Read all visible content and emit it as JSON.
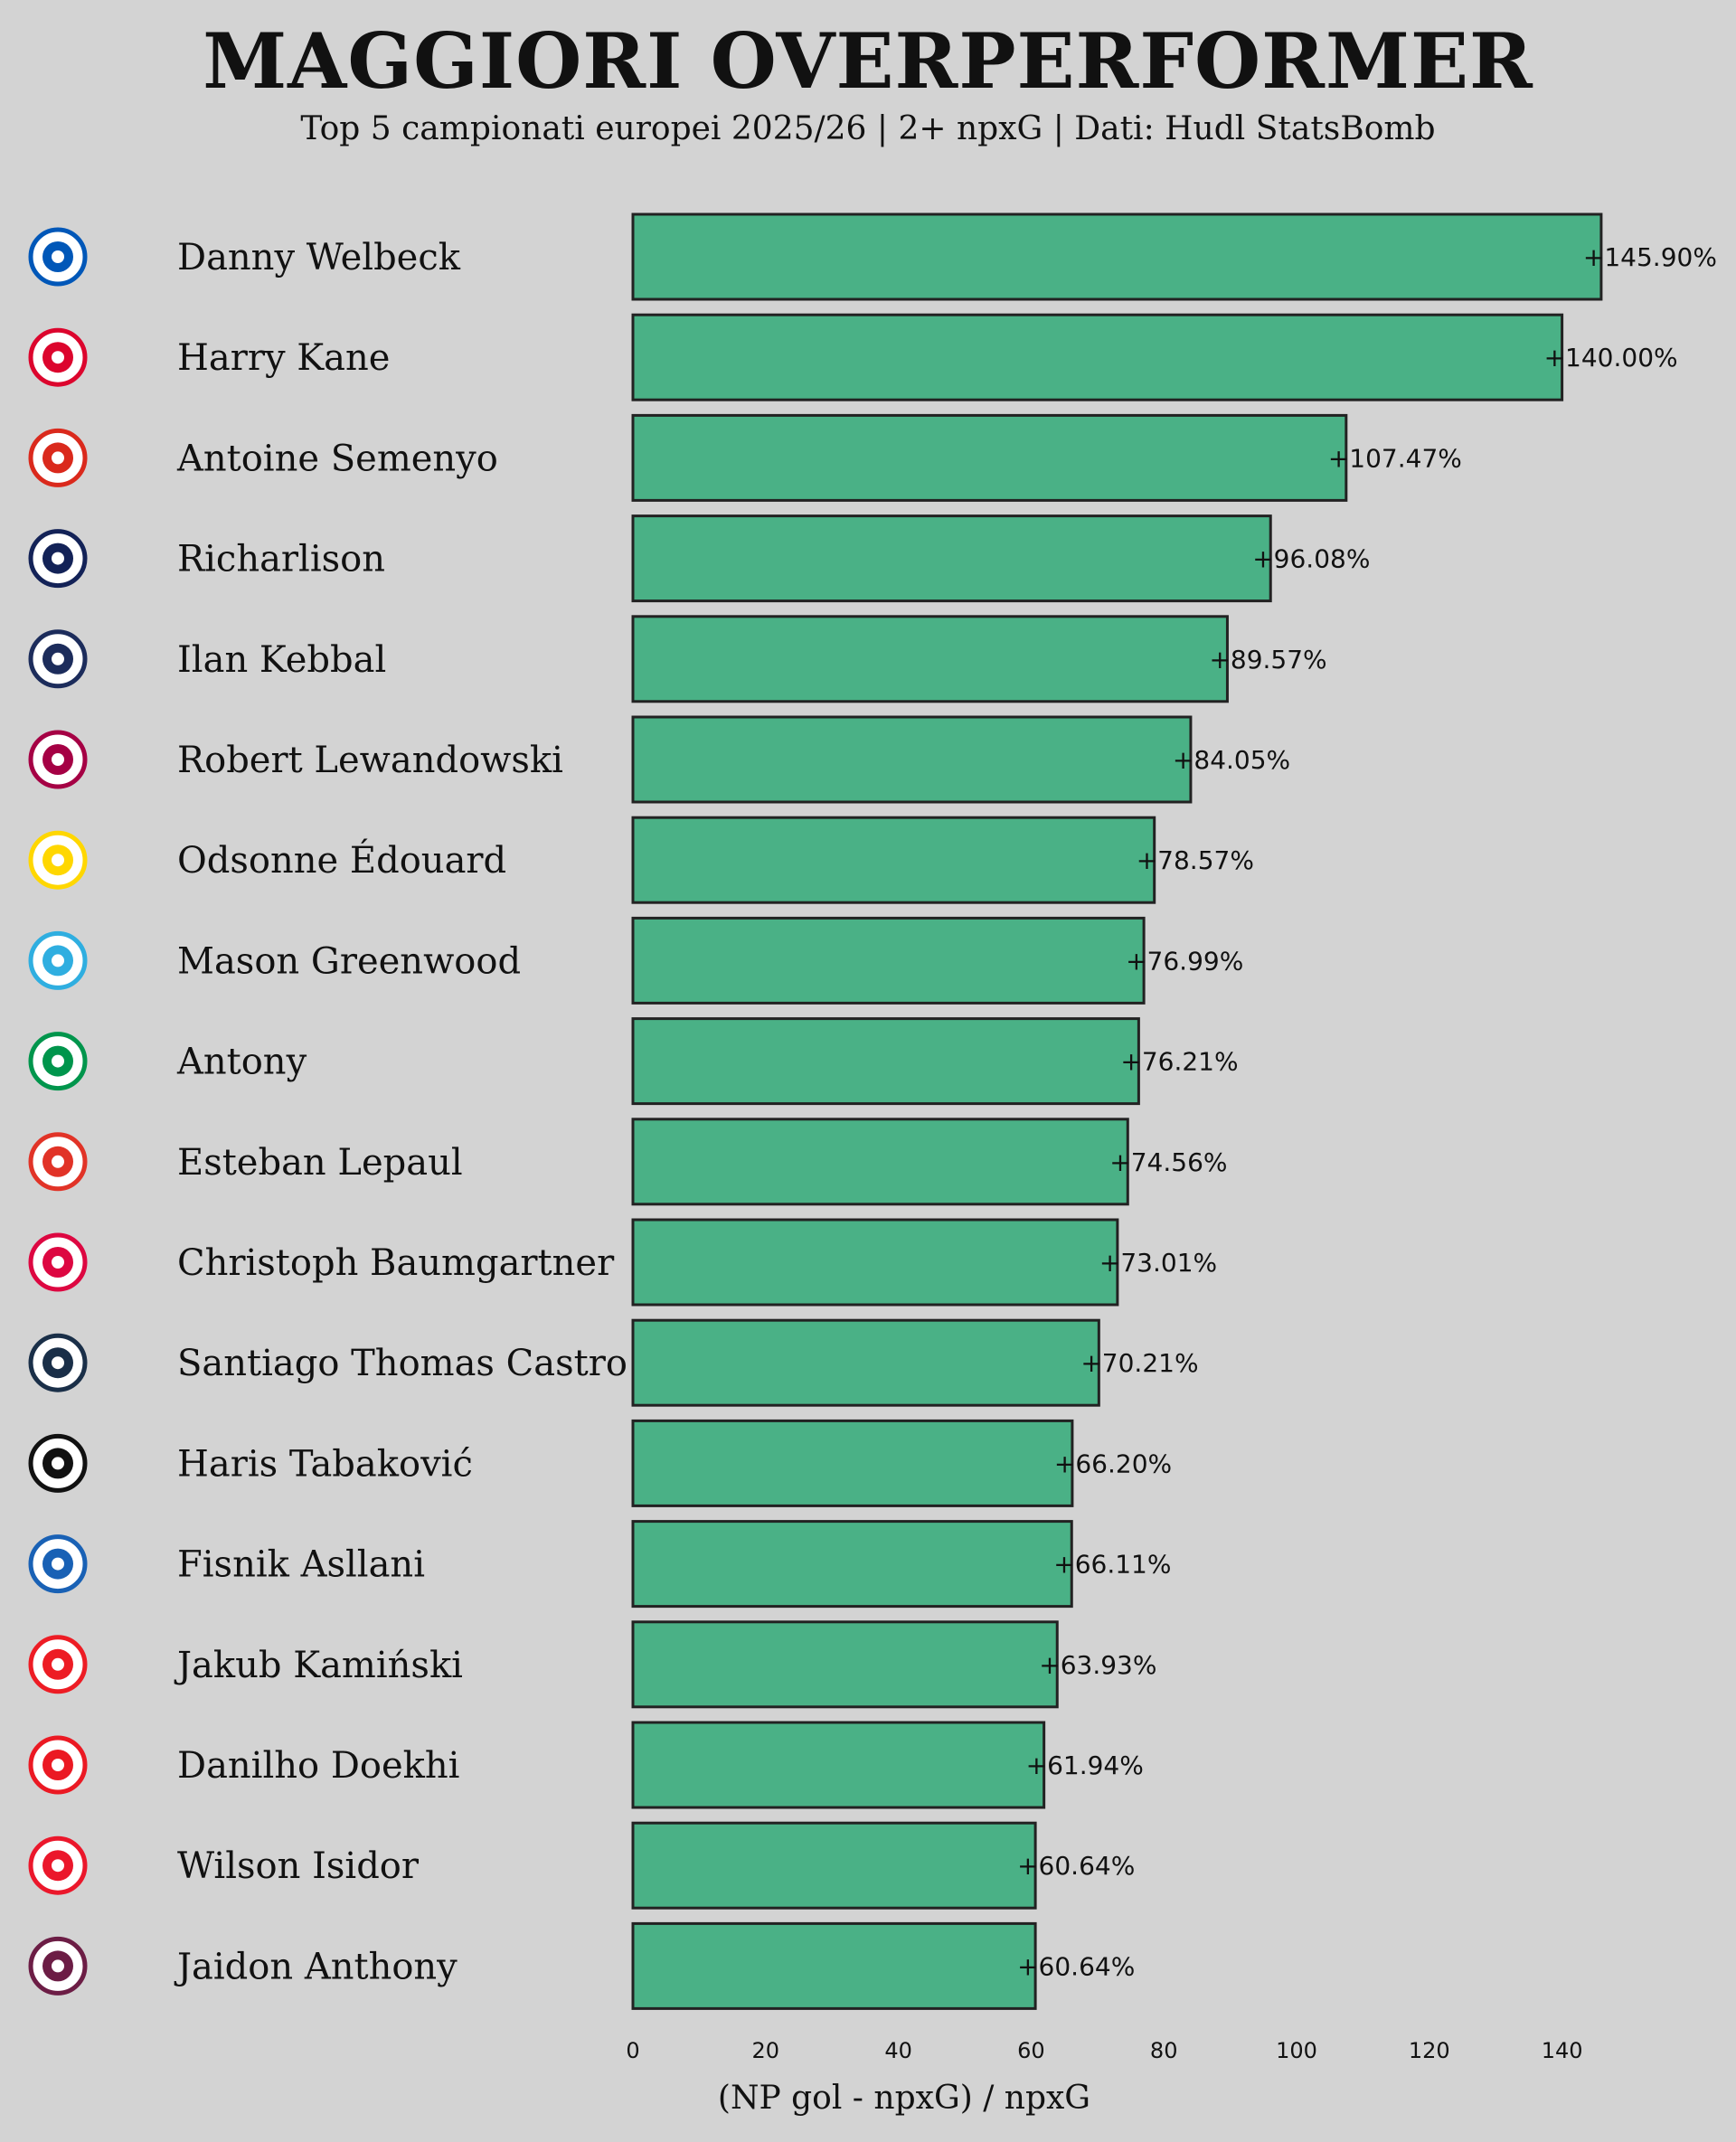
{
  "title": "MAGGIORI OVERPERFORMER",
  "subtitle": "Top 5 campionati europei 2025/26 | 2+ npxG | Dati: Hudl StatsBomb",
  "colors": {
    "bar": "#4ab186",
    "bar_edge": "#222222",
    "background": "#d3d3d3"
  },
  "chart_data": {
    "type": "bar",
    "orientation": "horizontal",
    "categories": [
      "Danny Welbeck",
      "Harry Kane",
      "Antoine Semenyo",
      "Richarlison",
      "Ilan Kebbal",
      "Robert Lewandowski",
      "Odsonne Édouard",
      "Mason Greenwood",
      "Antony",
      "Esteban Lepaul",
      "Christoph Baumgartner",
      "Santiago Thomas Castro",
      "Haris Tabaković",
      "Fisnik Asllani",
      "Jakub Kamiński",
      "Danilho Doekhi",
      "Wilson Isidor",
      "Jaidon Anthony"
    ],
    "values": [
      145.9,
      140.0,
      107.47,
      96.08,
      89.57,
      84.05,
      78.57,
      76.99,
      76.21,
      74.56,
      73.01,
      70.21,
      66.2,
      66.11,
      63.93,
      61.94,
      60.64,
      60.64
    ],
    "value_labels": [
      "+145.90%",
      "+140.00%",
      "+107.47%",
      "+96.08%",
      "+89.57%",
      "+84.05%",
      "+78.57%",
      "+76.99%",
      "+76.21%",
      "+74.56%",
      "+73.01%",
      "+70.21%",
      "+66.20%",
      "+66.11%",
      "+63.93%",
      "+61.94%",
      "+60.64%",
      "+60.64%"
    ],
    "logos": [
      {
        "icon": "brighton-crest-icon",
        "color": "#0057b8"
      },
      {
        "icon": "bayern-crest-icon",
        "color": "#dc052d"
      },
      {
        "icon": "bournemouth-crest-icon",
        "color": "#da291c"
      },
      {
        "icon": "tottenham-crest-icon",
        "color": "#132257"
      },
      {
        "icon": "paris-fc-crest-icon",
        "color": "#1c2c5b"
      },
      {
        "icon": "barcelona-crest-icon",
        "color": "#a50044"
      },
      {
        "icon": "lens-crest-icon",
        "color": "#ffd700"
      },
      {
        "icon": "marseille-crest-icon",
        "color": "#2faee0"
      },
      {
        "icon": "betis-crest-icon",
        "color": "#00954c"
      },
      {
        "icon": "rennes-crest-icon",
        "color": "#e13327"
      },
      {
        "icon": "leipzig-crest-icon",
        "color": "#dd0741"
      },
      {
        "icon": "bologna-crest-icon",
        "color": "#1a2f48"
      },
      {
        "icon": "gladbach-crest-icon",
        "color": "#111111"
      },
      {
        "icon": "hoffenheim-crest-icon",
        "color": "#1961b5"
      },
      {
        "icon": "koln-crest-icon",
        "color": "#ed1c24"
      },
      {
        "icon": "union-berlin-crest-icon",
        "color": "#eb1923"
      },
      {
        "icon": "sunderland-crest-icon",
        "color": "#eb172b"
      },
      {
        "icon": "burnley-crest-icon",
        "color": "#6c1d45"
      }
    ],
    "xticks": [
      0,
      20,
      40,
      60,
      80,
      100,
      120,
      140
    ],
    "xlim": [
      0,
      150
    ],
    "xlabel": "(NP gol - npxG) / npxG",
    "ylabel": "",
    "grid": false
  }
}
